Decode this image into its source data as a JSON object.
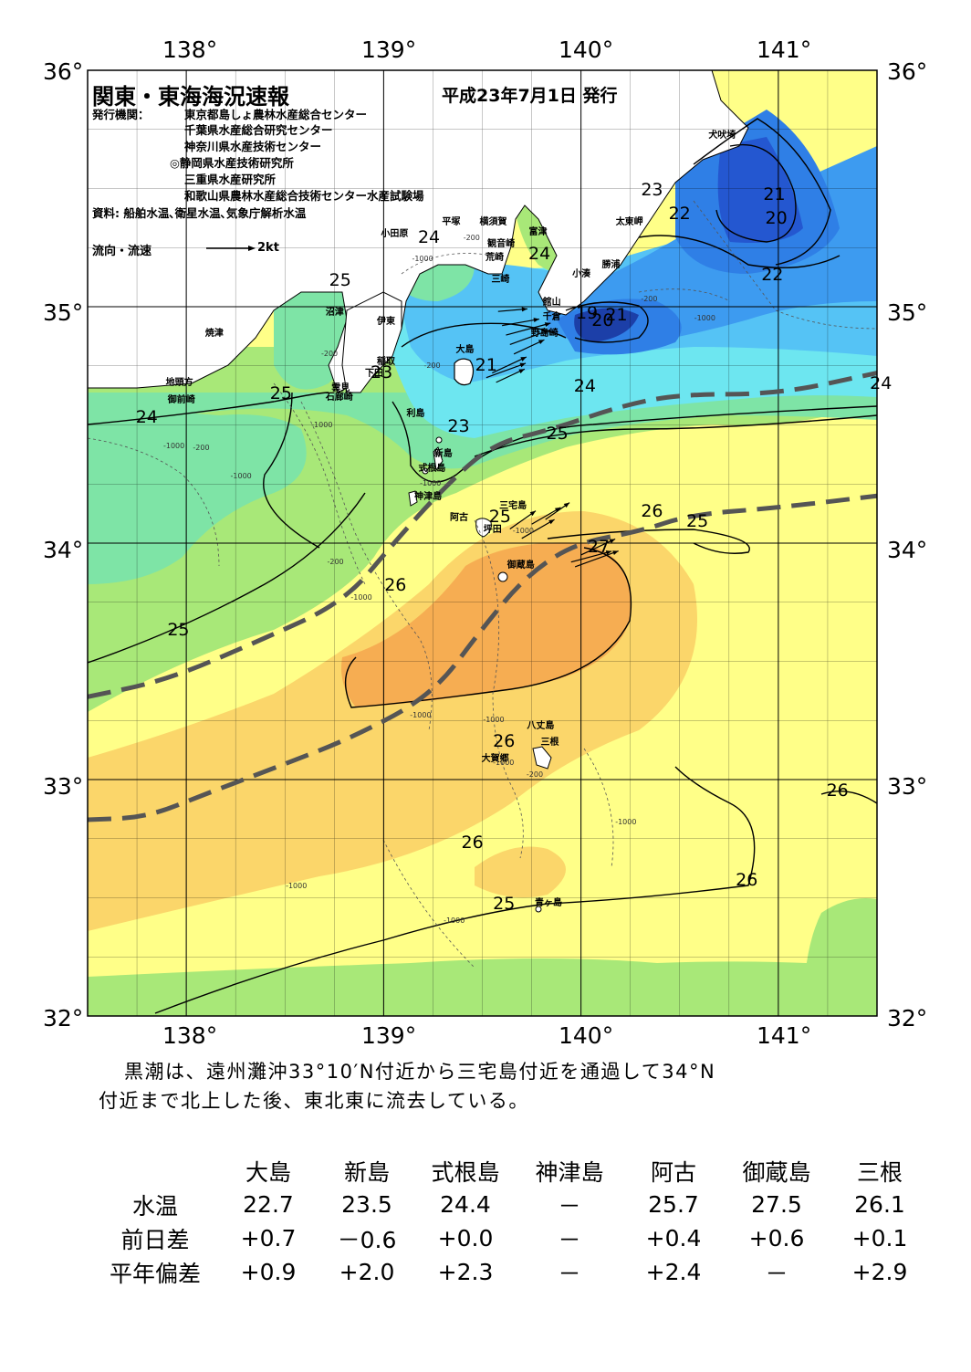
{
  "header": {
    "title": "関東・東海海況速報",
    "date": "平成23年7月1日 発行"
  },
  "publishers": {
    "label": "発行機関：",
    "items": [
      "東京都島しょ農林水産総合センター",
      "千葉県水産総合研究センター",
      "神奈川県水産技術センター",
      "◎静岡県水産技術研究所",
      "三重県水産研究所",
      "和歌山県農林水産総合技術センター水産試験場"
    ],
    "source": "資料: 船舶水温､衛星水温､気象庁解析水温"
  },
  "legend": {
    "label": "流向・流速",
    "scale": "2kt"
  },
  "axes": {
    "lon_labels": [
      "138°",
      "139°",
      "140°",
      "141°"
    ],
    "lat_labels": [
      "36°",
      "35°",
      "34°",
      "33°",
      "32°"
    ]
  },
  "place_names": [
    {
      "name": "犬吠埼",
      "lon": 140.72,
      "lat": 35.72
    },
    {
      "name": "太東岬",
      "lon": 140.25,
      "lat": 35.35
    },
    {
      "name": "勝浦",
      "lon": 140.18,
      "lat": 35.17
    },
    {
      "name": "小湊",
      "lon": 140.03,
      "lat": 35.13
    },
    {
      "name": "富津",
      "lon": 139.81,
      "lat": 35.31
    },
    {
      "name": "横須賀",
      "lon": 139.56,
      "lat": 35.35
    },
    {
      "name": "観音崎",
      "lon": 139.6,
      "lat": 35.26
    },
    {
      "name": "荒崎",
      "lon": 139.59,
      "lat": 35.2
    },
    {
      "name": "平塚",
      "lon": 139.37,
      "lat": 35.35
    },
    {
      "name": "小田原",
      "lon": 139.06,
      "lat": 35.3
    },
    {
      "name": "三崎",
      "lon": 139.62,
      "lat": 35.11
    },
    {
      "name": "館山",
      "lon": 139.88,
      "lat": 35.01
    },
    {
      "name": "千倉",
      "lon": 139.88,
      "lat": 34.95
    },
    {
      "name": "野島崎",
      "lon": 139.82,
      "lat": 34.88
    },
    {
      "name": "大島",
      "lon": 139.44,
      "lat": 34.81
    },
    {
      "name": "沼津",
      "lon": 138.78,
      "lat": 34.97
    },
    {
      "name": "伊東",
      "lon": 139.04,
      "lat": 34.93
    },
    {
      "name": "焼津",
      "lon": 138.17,
      "lat": 34.88
    },
    {
      "name": "稲取",
      "lon": 139.04,
      "lat": 34.76
    },
    {
      "name": "下田",
      "lon": 138.98,
      "lat": 34.71
    },
    {
      "name": "雲見",
      "lon": 138.81,
      "lat": 34.65
    },
    {
      "name": "石廊崎",
      "lon": 138.78,
      "lat": 34.61
    },
    {
      "name": "地頭方",
      "lon": 137.97,
      "lat": 34.67
    },
    {
      "name": "御前崎",
      "lon": 137.98,
      "lat": 34.6
    },
    {
      "name": "利島",
      "lon": 139.19,
      "lat": 34.54
    },
    {
      "name": "新島",
      "lon": 139.33,
      "lat": 34.37
    },
    {
      "name": "式根島",
      "lon": 139.25,
      "lat": 34.31
    },
    {
      "name": "神津島",
      "lon": 139.23,
      "lat": 34.19
    },
    {
      "name": "三宅島",
      "lon": 139.66,
      "lat": 34.15
    },
    {
      "name": "阿古",
      "lon": 139.41,
      "lat": 34.1
    },
    {
      "name": "坪田",
      "lon": 139.58,
      "lat": 34.05
    },
    {
      "name": "御蔵島",
      "lon": 139.7,
      "lat": 33.9
    },
    {
      "name": "八丈島",
      "lon": 139.8,
      "lat": 33.22
    },
    {
      "name": "三根",
      "lon": 139.87,
      "lat": 33.15
    },
    {
      "name": "大賀郷",
      "lon": 139.57,
      "lat": 33.08
    },
    {
      "name": "青ヶ島",
      "lon": 139.84,
      "lat": 32.47
    }
  ],
  "temperature_labels": [
    {
      "text": "25",
      "lon": 138.77,
      "lat": 35.11
    },
    {
      "text": "24",
      "lon": 139.22,
      "lat": 35.29
    },
    {
      "text": "24",
      "lon": 139.78,
      "lat": 35.22
    },
    {
      "text": "23",
      "lon": 140.35,
      "lat": 35.49
    },
    {
      "text": "22",
      "lon": 140.49,
      "lat": 35.39
    },
    {
      "text": "21",
      "lon": 140.97,
      "lat": 35.47
    },
    {
      "text": "20",
      "lon": 140.98,
      "lat": 35.37
    },
    {
      "text": "22",
      "lon": 140.96,
      "lat": 35.13
    },
    {
      "text": "19",
      "lon": 140.02,
      "lat": 34.97
    },
    {
      "text": "20",
      "lon": 140.1,
      "lat": 34.94
    },
    {
      "text": "21",
      "lon": 140.17,
      "lat": 34.96
    },
    {
      "text": "21",
      "lon": 139.51,
      "lat": 34.75
    },
    {
      "text": "23",
      "lon": 138.98,
      "lat": 34.72
    },
    {
      "text": "25",
      "lon": 138.47,
      "lat": 34.63
    },
    {
      "text": "24",
      "lon": 137.79,
      "lat": 34.53
    },
    {
      "text": "24",
      "lon": 140.01,
      "lat": 34.66
    },
    {
      "text": "24",
      "lon": 141.51,
      "lat": 34.67
    },
    {
      "text": "23",
      "lon": 139.37,
      "lat": 34.49
    },
    {
      "text": "25",
      "lon": 139.87,
      "lat": 34.46
    },
    {
      "text": "25",
      "lon": 139.58,
      "lat": 34.11
    },
    {
      "text": "26",
      "lon": 140.35,
      "lat": 34.13
    },
    {
      "text": "25",
      "lon": 140.58,
      "lat": 34.09
    },
    {
      "text": "27",
      "lon": 140.08,
      "lat": 33.98
    },
    {
      "text": "26",
      "lon": 139.05,
      "lat": 33.82
    },
    {
      "text": "25",
      "lon": 137.95,
      "lat": 33.63
    },
    {
      "text": "26",
      "lon": 139.6,
      "lat": 33.16
    },
    {
      "text": "26",
      "lon": 141.29,
      "lat": 32.95
    },
    {
      "text": "26",
      "lon": 139.44,
      "lat": 32.73
    },
    {
      "text": "26",
      "lon": 140.83,
      "lat": 32.57
    },
    {
      "text": "25",
      "lon": 139.6,
      "lat": 32.47
    }
  ],
  "depth_labels": [
    {
      "text": "-1000",
      "lon": 139.19,
      "lat": 35.2
    },
    {
      "text": "-200",
      "lon": 139.45,
      "lat": 35.29
    },
    {
      "text": "-200",
      "lon": 140.35,
      "lat": 35.03
    },
    {
      "text": "-1000",
      "lon": 140.62,
      "lat": 34.95
    },
    {
      "text": "-200",
      "lon": 138.73,
      "lat": 34.8
    },
    {
      "text": "-200",
      "lon": 139.25,
      "lat": 34.75
    },
    {
      "text": "-1000",
      "lon": 137.93,
      "lat": 34.41
    },
    {
      "text": "-200",
      "lon": 138.08,
      "lat": 34.4
    },
    {
      "text": "-1000",
      "lon": 138.68,
      "lat": 34.5
    },
    {
      "text": "-1000",
      "lon": 138.27,
      "lat": 34.28
    },
    {
      "text": "-1000",
      "lon": 139.23,
      "lat": 34.25
    },
    {
      "text": "-200",
      "lon": 138.76,
      "lat": 33.92
    },
    {
      "text": "-1000",
      "lon": 138.88,
      "lat": 33.77
    },
    {
      "text": "-1000",
      "lon": 139.7,
      "lat": 34.05
    },
    {
      "text": "-1000",
      "lon": 139.18,
      "lat": 33.27
    },
    {
      "text": "-1000",
      "lon": 139.55,
      "lat": 33.25
    },
    {
      "text": "-1000",
      "lon": 139.6,
      "lat": 33.07
    },
    {
      "text": "-200",
      "lon": 139.77,
      "lat": 33.02
    },
    {
      "text": "-1000",
      "lon": 140.22,
      "lat": 32.82
    },
    {
      "text": "-1000",
      "lon": 138.55,
      "lat": 32.55
    },
    {
      "text": "-1000",
      "lon": 139.35,
      "lat": 32.4
    }
  ],
  "kuroshio_axes": [
    [
      [
        137.5,
        33.35
      ],
      [
        137.9,
        33.42
      ],
      [
        138.35,
        33.58
      ],
      [
        138.8,
        33.75
      ],
      [
        139.05,
        34.0
      ],
      [
        139.3,
        34.23
      ],
      [
        139.55,
        34.42
      ],
      [
        139.85,
        34.48
      ],
      [
        140.2,
        34.58
      ],
      [
        140.5,
        34.63
      ],
      [
        141.0,
        34.63
      ],
      [
        141.5,
        34.72
      ]
    ],
    [
      [
        137.5,
        32.83
      ],
      [
        137.8,
        32.84
      ],
      [
        138.1,
        32.94
      ],
      [
        138.45,
        33.05
      ],
      [
        138.85,
        33.18
      ],
      [
        139.25,
        33.36
      ],
      [
        139.5,
        33.64
      ],
      [
        139.72,
        33.86
      ],
      [
        139.97,
        34.0
      ],
      [
        140.3,
        34.05
      ],
      [
        140.55,
        34.12
      ],
      [
        141.0,
        34.15
      ],
      [
        141.5,
        34.2
      ]
    ]
  ],
  "current_arrows": [
    {
      "lon": 139.6,
      "lat": 34.92,
      "dir": 80,
      "speed": 1.8
    },
    {
      "lon": 139.62,
      "lat": 34.88,
      "dir": 75,
      "speed": 2.2
    },
    {
      "lon": 139.64,
      "lat": 34.84,
      "dir": 70,
      "speed": 2.0
    },
    {
      "lon": 139.66,
      "lat": 34.8,
      "dir": 65,
      "speed": 1.6
    },
    {
      "lon": 139.58,
      "lat": 34.98,
      "dir": 85,
      "speed": 1.4
    },
    {
      "lon": 139.55,
      "lat": 34.72,
      "dir": 65,
      "speed": 1.8
    },
    {
      "lon": 139.52,
      "lat": 34.7,
      "dir": 70,
      "speed": 2.0
    },
    {
      "lon": 139.57,
      "lat": 34.68,
      "dir": 65,
      "speed": 1.5
    },
    {
      "lon": 139.64,
      "lat": 34.06,
      "dir": 55,
      "speed": 1.5
    },
    {
      "lon": 139.7,
      "lat": 34.02,
      "dir": 60,
      "speed": 1.8
    },
    {
      "lon": 139.75,
      "lat": 34.08,
      "dir": 60,
      "speed": 1.6
    },
    {
      "lon": 139.82,
      "lat": 34.1,
      "dir": 55,
      "speed": 1.4
    },
    {
      "lon": 139.95,
      "lat": 33.92,
      "dir": 75,
      "speed": 2.0
    },
    {
      "lon": 139.97,
      "lat": 33.9,
      "dir": 70,
      "speed": 2.2
    },
    {
      "lon": 140.0,
      "lat": 33.95,
      "dir": 65,
      "speed": 1.8
    }
  ],
  "summary": {
    "line1": "黒潮は、遠州灘沖33°10′N付近から三宅島付近を通過して34°N",
    "line2": "付近まで北上した後、東北東に流去している。"
  },
  "observations": {
    "stations": [
      "大島",
      "新島",
      "式根島",
      "神津島",
      "阿古",
      "御蔵島",
      "三根"
    ],
    "rows": [
      {
        "label": "水温",
        "values": [
          "22.7",
          "23.5",
          "24.4",
          "－",
          "25.7",
          "27.5",
          "26.1"
        ]
      },
      {
        "label": "前日差",
        "values": [
          "+0.7",
          "－0.6",
          "+0.0",
          "－",
          "+0.4",
          "+0.6",
          "+0.1"
        ]
      },
      {
        "label": "平年偏差",
        "values": [
          "+0.9",
          "+2.0",
          "+2.3",
          "－",
          "+2.4",
          "－",
          "+2.9"
        ]
      }
    ]
  },
  "colors": {
    "land": "#ffffff",
    "t19": "#1c3fa8",
    "t20": "#2457d0",
    "t21": "#2f7fe6",
    "t22": "#3d9bf0",
    "t23": "#55c3f5",
    "t24": "#6de6f0",
    "t25": "#7ee4a6",
    "t26_lo": "#a8e878",
    "t26": "#ffff88",
    "t26_hi": "#fbd66a",
    "t27": "#f6ad52",
    "t27_hi": "#f59a3c",
    "kuroshio": "#555555"
  }
}
